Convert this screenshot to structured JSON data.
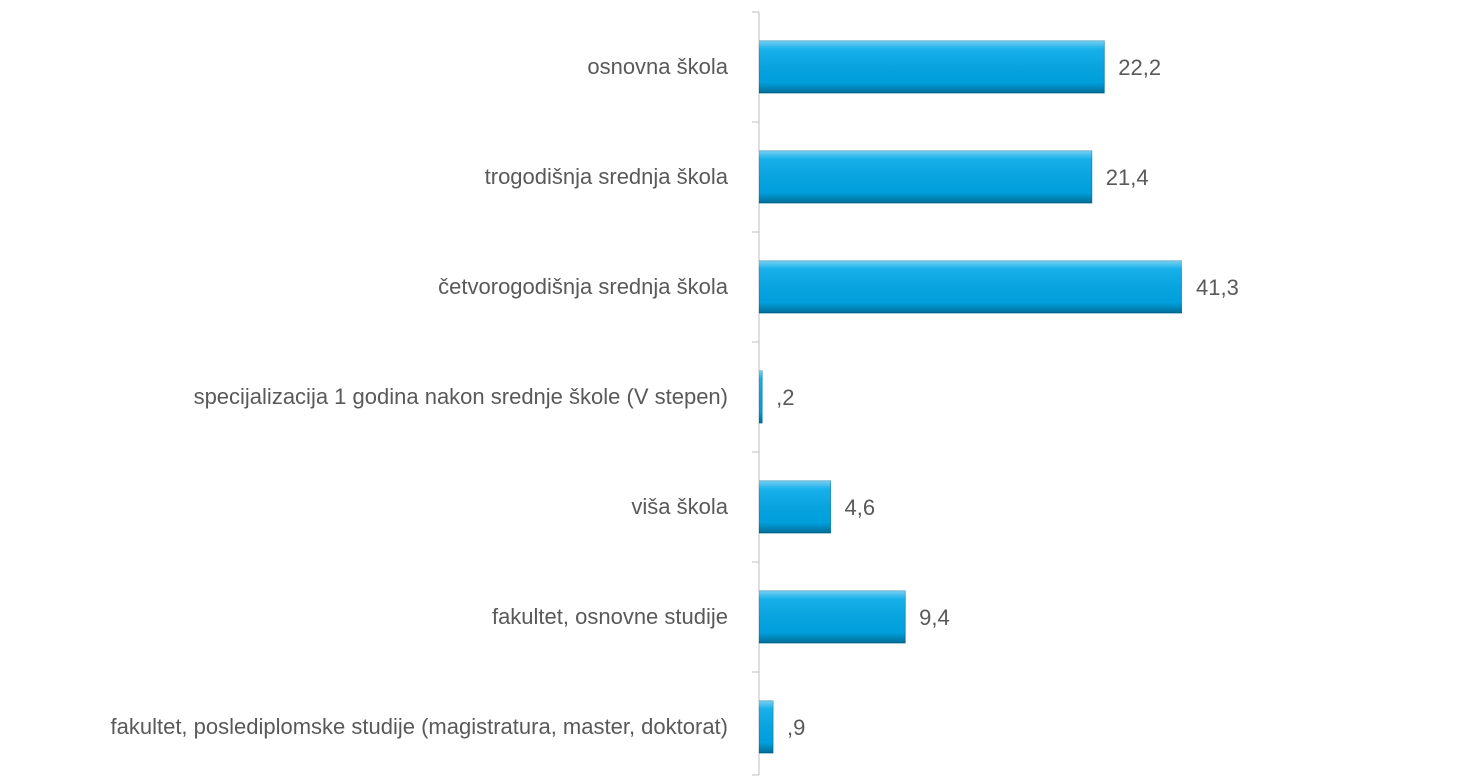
{
  "chart_data": {
    "type": "barh",
    "categories": [
      "osnovna škola",
      "trogodišnja srednja škola",
      "četvorogodišnja srednja škola",
      "specijalizacija 1 godina nakon srednje škole (V stepen)",
      "viša škola",
      "fakultet, osnovne studije",
      "fakultet, poslediplomske studije (magistratura, master, doktorat)"
    ],
    "values": [
      22.2,
      21.4,
      41.3,
      0.2,
      4.6,
      9.4,
      0.9
    ],
    "value_labels": [
      "22,2",
      "21,4",
      "41,3",
      ",2",
      "4,6",
      "9,4",
      ",9"
    ],
    "color": "#00a8e8",
    "xlim": [
      0,
      27.2
    ]
  }
}
